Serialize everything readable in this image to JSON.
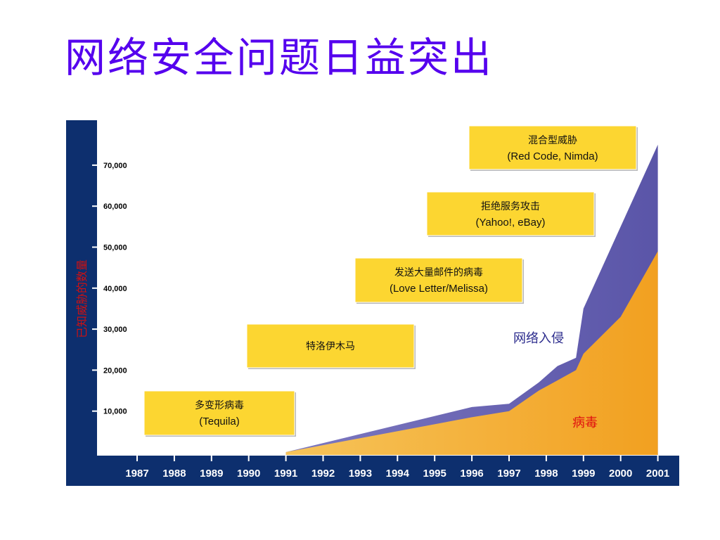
{
  "slide": {
    "title": "网络安全问题日益突出"
  },
  "chart_data": {
    "type": "area",
    "ylabel": "已知威胁的数量",
    "xlabel": "",
    "x": [
      1991,
      1996,
      1997,
      1997.8,
      1998.3,
      1998.8,
      1999,
      2000,
      2001
    ],
    "xticks": [
      "1987",
      "1988",
      "1989",
      "1990",
      "1991",
      "1992",
      "1993",
      "1994",
      "1995",
      "1996",
      "1997",
      "1998",
      "1999",
      "2000",
      "2001"
    ],
    "yticks": [
      "10,000",
      "20,000",
      "30,000",
      "40,000",
      "50,000",
      "60,000",
      "70,000"
    ],
    "ylim": [
      0,
      70000
    ],
    "xlim": [
      1987,
      2001
    ],
    "series": [
      {
        "name": "病毒",
        "values": [
          0,
          8500,
          10000,
          15000,
          17500,
          20000,
          24000,
          33000,
          49000
        ]
      },
      {
        "name": "网络入侵",
        "values": [
          0,
          11000,
          11800,
          17000,
          21000,
          23000,
          35000,
          55000,
          75000
        ]
      }
    ],
    "annotations": [
      {
        "lines": [
          "多变形病毒",
          "(Tequila)"
        ]
      },
      {
        "lines": [
          "特洛伊木马"
        ]
      },
      {
        "lines": [
          "发送大量邮件的病毒",
          "(Love Letter/Melissa)"
        ]
      },
      {
        "lines": [
          "拒绝服务攻击",
          "(Yahoo!, eBay)"
        ]
      },
      {
        "lines": [
          "混合型威胁",
          "(Red Code, Nimda)"
        ]
      }
    ],
    "colors": {
      "virus": "#f2a82a",
      "intrusion": "#6b66b3",
      "axis_band": "#0d2f6e",
      "callout": "#fcd631",
      "virus_label": "#e01010",
      "intrusion_label": "#2a2a8c"
    }
  }
}
